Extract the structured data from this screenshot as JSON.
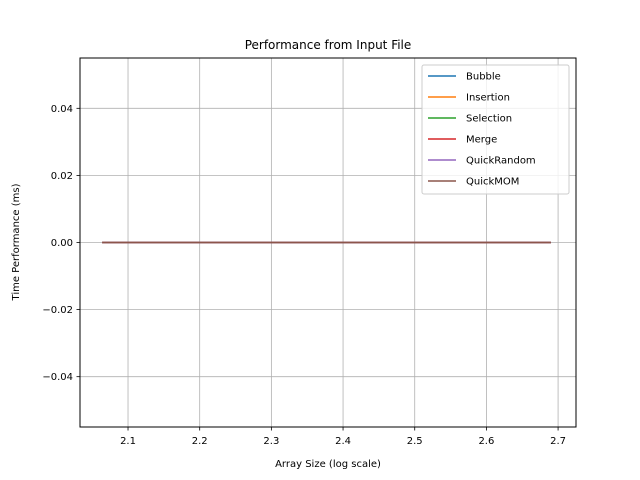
{
  "chart_data": {
    "type": "line",
    "title": "Performance from Input File",
    "xlabel": "Array Size (log scale)",
    "ylabel": "Time Performance (ms)",
    "xlim": [
      2.033,
      2.725
    ],
    "ylim": [
      -0.055,
      0.055
    ],
    "xticks": [
      2.1,
      2.2,
      2.3,
      2.4,
      2.5,
      2.6,
      2.7
    ],
    "xtick_labels": [
      "2.1",
      "2.2",
      "2.3",
      "2.4",
      "2.5",
      "2.6",
      "2.7"
    ],
    "yticks": [
      -0.04,
      -0.02,
      0.0,
      0.02,
      0.04
    ],
    "ytick_labels": [
      "−0.04",
      "−0.02",
      "0.00",
      "0.02",
      "0.04"
    ],
    "grid": true,
    "legend_position": "top-right",
    "series": [
      {
        "name": "Bubble",
        "color": "#1f77b4",
        "x": [
          2.064,
          2.69
        ],
        "y": [
          0,
          0
        ]
      },
      {
        "name": "Insertion",
        "color": "#ff7f0e",
        "x": [
          2.064,
          2.69
        ],
        "y": [
          0,
          0
        ]
      },
      {
        "name": "Selection",
        "color": "#2ca02c",
        "x": [
          2.064,
          2.69
        ],
        "y": [
          0,
          0
        ]
      },
      {
        "name": "Merge",
        "color": "#d62728",
        "x": [
          2.064,
          2.69
        ],
        "y": [
          0,
          0
        ]
      },
      {
        "name": "QuickRandom",
        "color": "#9467bd",
        "x": [
          2.064,
          2.69
        ],
        "y": [
          0,
          0
        ]
      },
      {
        "name": "QuickMOM",
        "color": "#8c564b",
        "x": [
          2.064,
          2.69
        ],
        "y": [
          0,
          0
        ]
      }
    ]
  }
}
